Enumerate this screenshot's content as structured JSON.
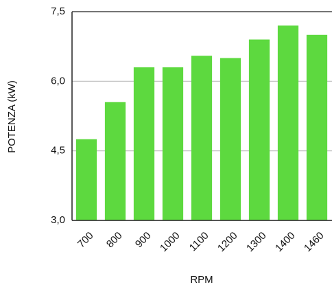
{
  "chart_data": {
    "type": "bar",
    "x_label": "RPM",
    "y_label": "POTENZA (kW)",
    "categories": [
      "700",
      "800",
      "900",
      "1000",
      "1100",
      "1200",
      "1300",
      "1400",
      "1460"
    ],
    "values": [
      4.75,
      5.55,
      6.3,
      6.3,
      6.55,
      6.5,
      6.9,
      7.2,
      7.0
    ],
    "color": "#5dd93f",
    "ylim": [
      3.0,
      7.5
    ],
    "yticks": [
      {
        "value": 3.0,
        "label": "3,0"
      },
      {
        "value": 4.5,
        "label": "4,5"
      },
      {
        "value": 6.0,
        "label": "6,0"
      },
      {
        "value": 7.5,
        "label": "7,5"
      }
    ],
    "grid": true
  }
}
